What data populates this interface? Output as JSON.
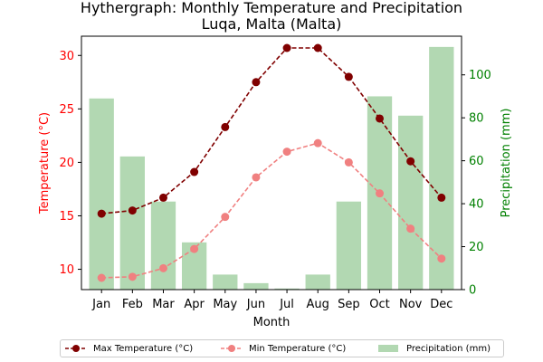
{
  "chart_data": {
    "type": "bar+line",
    "title_line1": "Hythergraph: Monthly Temperature and Precipitation",
    "title_line2": "Luqa, Malta (Malta)",
    "xlabel": "Month",
    "ylabel_left": "Temperature (°C)",
    "ylabel_right": "Precipitation (mm)",
    "categories": [
      "Jan",
      "Feb",
      "Mar",
      "Apr",
      "May",
      "Jun",
      "Jul",
      "Aug",
      "Sep",
      "Oct",
      "Nov",
      "Dec"
    ],
    "temperature_ylim": [
      8.1,
      31.8
    ],
    "temperature_ticks": [
      10,
      15,
      20,
      25,
      30
    ],
    "precipitation_ylim": [
      0,
      118
    ],
    "precipitation_ticks": [
      0,
      20,
      40,
      60,
      80,
      100
    ],
    "series": [
      {
        "name": "Max Temperature (°C)",
        "axis": "left",
        "kind": "line",
        "color": "#800000",
        "dash": true,
        "values": [
          15.2,
          15.5,
          16.7,
          19.1,
          23.3,
          27.5,
          30.7,
          30.7,
          28.0,
          24.1,
          20.1,
          16.7
        ]
      },
      {
        "name": "Min Temperature (°C)",
        "axis": "left",
        "kind": "line",
        "color": "#f08080",
        "dash": true,
        "values": [
          9.2,
          9.3,
          10.1,
          11.9,
          14.9,
          18.6,
          21.0,
          21.8,
          20.0,
          17.1,
          13.8,
          11.0
        ]
      },
      {
        "name": "Precipitation (mm)",
        "axis": "right",
        "kind": "bar",
        "color": "#b2d8b2",
        "values": [
          89,
          62,
          41,
          22,
          7,
          3,
          0.5,
          7,
          41,
          90,
          81,
          113
        ]
      }
    ],
    "colors": {
      "left_axis": "#ff0000",
      "right_axis": "#008000",
      "bars": "#b2d8b2"
    },
    "grid": false,
    "legend_position": "bottom-center"
  }
}
